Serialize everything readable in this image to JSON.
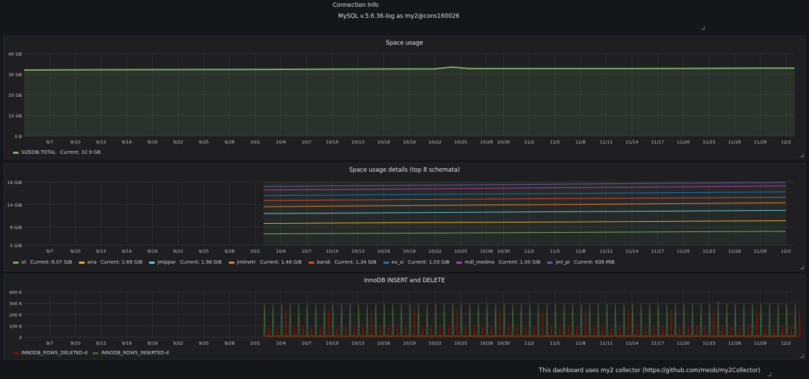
{
  "connection": {
    "title": "Connection Info",
    "value": "MySQL v.5.6.36-log as my2@cons160026"
  },
  "x_ticks": [
    "9/7",
    "9/10",
    "9/13",
    "9/16",
    "9/19",
    "9/22",
    "9/25",
    "9/28",
    "10/1",
    "10/4",
    "10/7",
    "10/10",
    "10/13",
    "10/16",
    "10/19",
    "10/22",
    "10/25",
    "10/28",
    "10/30",
    "11/2",
    "11/5",
    "11/8",
    "11/11",
    "11/14",
    "11/17",
    "11/20",
    "11/23",
    "11/26",
    "11/29",
    "12/2"
  ],
  "panels": {
    "space_usage": {
      "title": "Space usage",
      "legend": [
        {
          "name": "SIZEDB.TOTAL",
          "current": "Current: 32.9 GB",
          "color": "#7eb26d"
        }
      ]
    },
    "space_details": {
      "title": "Space usage details (top 8 schemata)",
      "legend": [
        {
          "name": "ot",
          "current": "Current: 8.07 GiB",
          "color": "#7eb26d"
        },
        {
          "name": "aria",
          "current": "Current: 2.69 GiB",
          "color": "#eab839"
        },
        {
          "name": "jmlppar",
          "current": "Current: 1.98 GiB",
          "color": "#6ed0e0"
        },
        {
          "name": "jmlmetr",
          "current": "Current: 1.46 GiB",
          "color": "#ef843c"
        },
        {
          "name": "bandi",
          "current": "Current: 1.34 GiB",
          "color": "#e24d42"
        },
        {
          "name": "ea_si",
          "current": "Current: 1.03 GiB",
          "color": "#1f78c1"
        },
        {
          "name": "mdl_medmo",
          "current": "Current: 1.00 GiB",
          "color": "#ba43a9"
        },
        {
          "name": "jml_pi",
          "current": "Current: 838 MiB",
          "color": "#705da0"
        }
      ]
    },
    "innodb": {
      "title": "InnoDB INSERT and DELETE",
      "legend": [
        {
          "name": "INNODB_ROWS_DELETED-d",
          "color": "#890f02"
        },
        {
          "name": "INNODB_ROWS_INSERTED-d",
          "color": "#3f6833"
        }
      ]
    }
  },
  "footer": "This dashboard uses my2 collector (https://github.com/meob/my2Collector)",
  "chart_data": [
    {
      "type": "area",
      "title": "Space usage",
      "x": [
        "9/4",
        "9/10",
        "9/20",
        "10/1",
        "10/15",
        "10/22",
        "10/24",
        "10/26",
        "11/5",
        "11/15",
        "11/29",
        "12/2"
      ],
      "series": [
        {
          "name": "SIZEDB.TOTAL",
          "values": [
            32.0,
            32.1,
            32.2,
            32.3,
            32.5,
            32.6,
            33.4,
            32.7,
            32.7,
            32.7,
            32.9,
            32.9
          ]
        }
      ],
      "y_ticks": [
        "0 B",
        "10 GB",
        "20 GB",
        "30 GB",
        "40 GB"
      ],
      "ylim": [
        0,
        40
      ],
      "y_unit": "GB",
      "grid": true,
      "legend_position": "bottom-left"
    },
    {
      "type": "area",
      "title": "Space usage details (top 8 schemata)",
      "x": [
        "10/2",
        "12/2"
      ],
      "series": [
        {
          "name": "ot",
          "values": [
            7.5,
            8.07
          ]
        },
        {
          "name": "aria",
          "values": [
            9.8,
            10.4
          ]
        },
        {
          "name": "jmlppar",
          "values": [
            12.0,
            12.7
          ]
        },
        {
          "name": "jmlmetr",
          "values": [
            13.5,
            14.4
          ]
        },
        {
          "name": "bandi",
          "values": [
            14.9,
            15.6
          ]
        },
        {
          "name": "ea_si",
          "values": [
            16.0,
            16.8
          ]
        },
        {
          "name": "mdl_medmo",
          "values": [
            17.2,
            18.1
          ]
        },
        {
          "name": "jml_pi",
          "values": [
            18.0,
            18.9
          ]
        }
      ],
      "y_ticks": [
        "5 GiB",
        "9 GiB",
        "14 GiB",
        "19 GiB"
      ],
      "ylim": [
        5,
        19
      ],
      "y_unit": "GiB",
      "grid": true,
      "legend_position": "bottom"
    },
    {
      "type": "line",
      "title": "InnoDB INSERT and DELETE",
      "x_range": [
        "10/2",
        "12/2"
      ],
      "series": [
        {
          "name": "INNODB_ROWS_INSERTED-d",
          "baseline": 10000,
          "daily_peak": 290000,
          "max_peak": 320000
        },
        {
          "name": "INNODB_ROWS_DELETED-d",
          "baseline": 5000,
          "typical_peak": 100000,
          "max_peak": 250000
        }
      ],
      "y_ticks": [
        "0",
        "100 K",
        "200 K",
        "300 K",
        "400 K"
      ],
      "ylim": [
        0,
        400000
      ],
      "grid": true,
      "legend_position": "bottom-left"
    }
  ]
}
